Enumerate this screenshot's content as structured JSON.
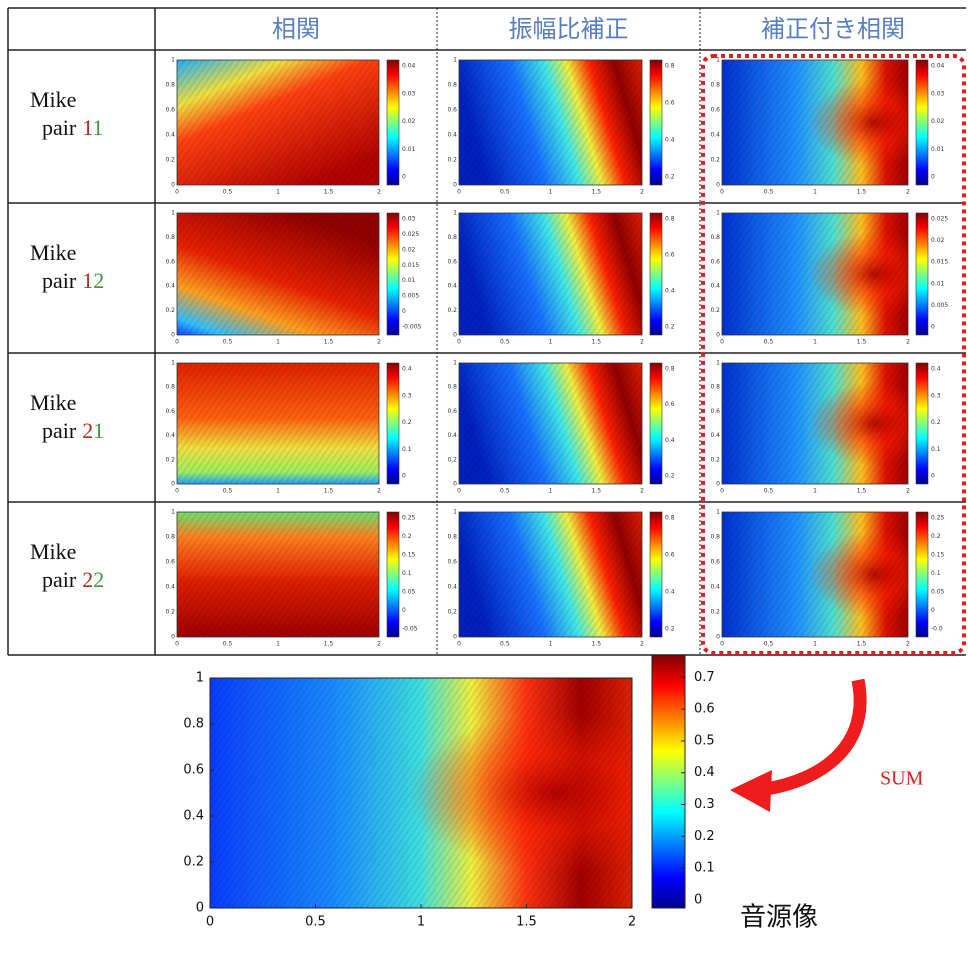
{
  "table": {
    "header": [
      "相関",
      "振幅比補正",
      "補正付き相関"
    ],
    "rows": [
      {
        "mic": "Mike",
        "pair": "pair",
        "digits": [
          "1",
          "1"
        ],
        "colorbars": [
          [
            "0.04",
            "0.03",
            "0.02",
            "0.01",
            "0"
          ],
          [
            "0.8",
            "0.6",
            "0.4",
            "0.2"
          ],
          [
            "0.04",
            "0.03",
            "0.02",
            "0.01",
            "0"
          ]
        ]
      },
      {
        "mic": "Mike",
        "pair": "pair",
        "digits": [
          "1",
          "2"
        ],
        "colorbars": [
          [
            "0.03",
            "0.025",
            "0.02",
            "0.015",
            "0.01",
            "0.005",
            "0",
            "-0.005"
          ],
          [
            "0.8",
            "0.6",
            "0.4",
            "0.2"
          ],
          [
            "0.025",
            "0.02",
            "0.015",
            "0.01",
            "0.005",
            "0"
          ]
        ]
      },
      {
        "mic": "Mike",
        "pair": "pair",
        "digits": [
          "2",
          "1"
        ],
        "colorbars": [
          [
            "0.4",
            "0.3",
            "0.2",
            "0.1",
            "0"
          ],
          [
            "0.8",
            "0.6",
            "0.4",
            "0.2"
          ],
          [
            "0.4",
            "0.3",
            "0.2",
            "0.1",
            "0"
          ]
        ]
      },
      {
        "mic": "Mike",
        "pair": "pair",
        "digits": [
          "2",
          "2"
        ],
        "colorbars": [
          [
            "0.25",
            "0.2",
            "0.15",
            "0.1",
            "0.05",
            "0",
            "-0.05"
          ],
          [
            "0.8",
            "0.6",
            "0.4",
            "0.2"
          ],
          [
            "0.25",
            "0.2",
            "0.15",
            "0.1",
            "0.05",
            "0",
            "-0.0"
          ]
        ]
      }
    ]
  },
  "small_axis": {
    "xticks": [
      "0",
      "0.5",
      "1",
      "1.5",
      "2"
    ],
    "yticks": [
      "1",
      "0.8",
      "0.6",
      "0.4",
      "0.2",
      "0"
    ]
  },
  "result_plot": {
    "xlim": [
      0,
      2
    ],
    "ylim": [
      0,
      1
    ],
    "xticks": [
      0,
      0.5,
      1,
      1.5,
      2
    ],
    "yticks": [
      0,
      0.2,
      0.4,
      0.6,
      0.8,
      1
    ],
    "clim": [
      -0.025,
      0.77
    ],
    "cticks": [
      0,
      0.1,
      0.2,
      0.3,
      0.4,
      0.5,
      0.6,
      0.7
    ]
  },
  "annotations": {
    "sum": "SUM",
    "caption": "音源像"
  }
}
